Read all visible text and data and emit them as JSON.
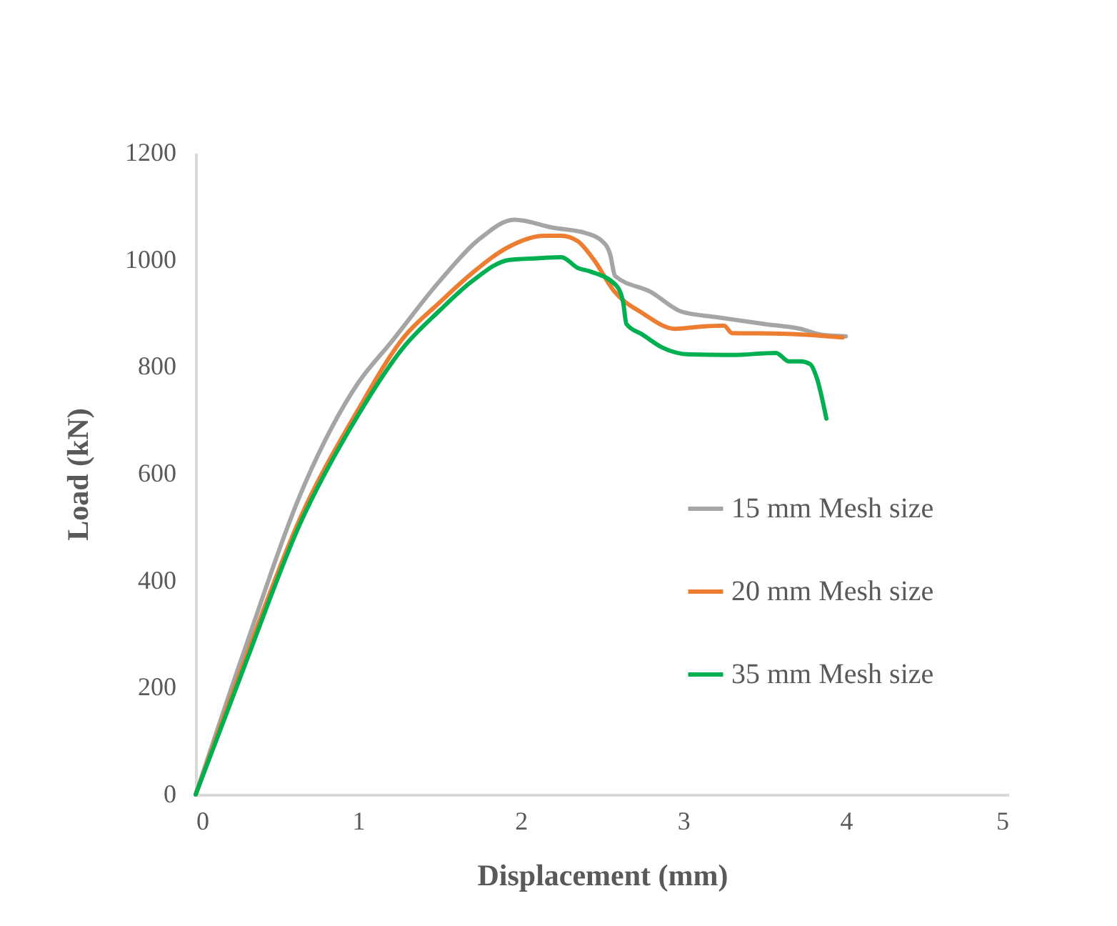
{
  "chart_data": {
    "type": "line",
    "xlabel": "Displacement (mm)",
    "ylabel": "Load (kN)",
    "xlim": [
      0,
      5
    ],
    "xticks": [
      0,
      1,
      2,
      3,
      4,
      5
    ],
    "ylim": [
      0,
      1200
    ],
    "yticks": [
      0,
      200,
      400,
      600,
      800,
      1000,
      1200
    ],
    "grid": false,
    "legend": "right",
    "marker": "none",
    "line_style": "solid",
    "series": [
      {
        "name": "15 mm Mesh size",
        "color": "#a5a5a5",
        "x": [
          0,
          0.3,
          0.67,
          1.0,
          1.2,
          1.5,
          1.75,
          1.96,
          2.2,
          2.4,
          2.5,
          2.55,
          2.58,
          2.8,
          2.99,
          3.2,
          3.5,
          3.72,
          3.85,
          4.0
        ],
        "values": [
          0,
          270,
          580,
          770,
          845,
          960,
          1040,
          1075,
          1060,
          1050,
          1035,
          1010,
          970,
          940,
          903,
          893,
          880,
          871,
          860,
          857
        ]
      },
      {
        "name": "20 mm Mesh size",
        "color": "#ed7d31",
        "x": [
          0,
          0.3,
          0.64,
          1.0,
          1.28,
          1.5,
          1.7,
          1.93,
          2.14,
          2.25,
          2.35,
          2.45,
          2.57,
          2.75,
          2.95,
          3.1,
          3.25,
          3.3,
          3.6,
          3.98
        ],
        "values": [
          0,
          250,
          515,
          720,
          855,
          920,
          975,
          1025,
          1045,
          1045,
          1035,
          1000,
          943,
          900,
          871,
          875,
          877,
          863,
          862,
          855
        ]
      },
      {
        "name": "35 mm Mesh size",
        "color": "#00b050",
        "x": [
          0,
          0.3,
          0.64,
          1.0,
          1.28,
          1.5,
          1.7,
          1.93,
          2.1,
          2.25,
          2.35,
          2.43,
          2.59,
          2.63,
          2.65,
          2.75,
          2.87,
          3.04,
          3.3,
          3.57,
          3.65,
          3.72,
          3.78,
          3.82,
          3.88
        ],
        "values": [
          0,
          240,
          505,
          710,
          837,
          905,
          960,
          1000,
          1003,
          1005,
          985,
          978,
          951,
          920,
          880,
          860,
          836,
          823,
          822,
          826,
          810,
          810,
          805,
          780,
          703
        ]
      }
    ]
  }
}
